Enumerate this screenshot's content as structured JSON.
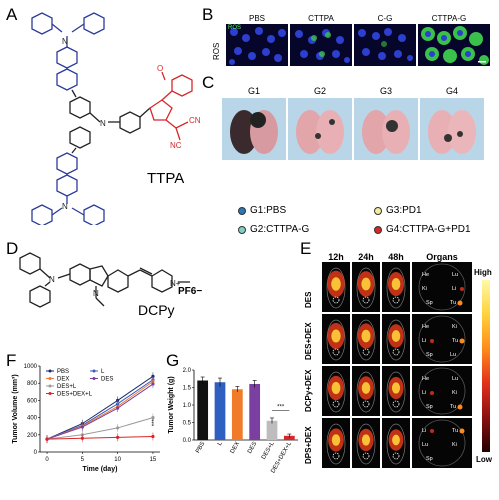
{
  "panels": {
    "A": {
      "label": "A",
      "molecule_name": "TTPA"
    },
    "B": {
      "label": "B",
      "row_label": "ROS",
      "image_tag": "ROS",
      "columns": [
        "PBS",
        "CTTPA",
        "C-G",
        "CTTPA-G"
      ]
    },
    "C": {
      "label": "C",
      "groups": [
        "G1",
        "G2",
        "G3",
        "G4"
      ]
    },
    "legend": [
      {
        "id": "g1",
        "text": "G1:PBS",
        "color": "#2a78b6"
      },
      {
        "id": "g3",
        "text": "G3:PD1",
        "color": "#f3ee9a"
      },
      {
        "id": "g2",
        "text": "G2:CTTPA-G",
        "color": "#7fd0c2"
      },
      {
        "id": "g4",
        "text": "G4:CTTPA-G+PD1",
        "color": "#d8262a"
      }
    ],
    "D": {
      "label": "D",
      "molecule_name": "DCPy",
      "counter_ion": "PF6−",
      "charge": "N+"
    },
    "E": {
      "label": "E",
      "columns": [
        "12h",
        "24h",
        "48h",
        "Organs"
      ],
      "rows": [
        "DES",
        "DES+DEX",
        "DCPy+DEX",
        "DPS+DEX"
      ],
      "organ_labels": [
        [
          "He",
          "Lu",
          "Ki",
          "Li",
          "Sp",
          "Tu"
        ],
        [
          "He",
          "Ki",
          "Li",
          "Tu",
          "Sp",
          "Lu"
        ],
        [
          "He",
          "Lu",
          "Li",
          "Ki",
          "Sp",
          "Tu"
        ],
        [
          "Li",
          "Tu",
          "Lu",
          "Ki",
          "Sp"
        ]
      ],
      "scale_high": "High",
      "scale_low": "Low"
    },
    "F": {
      "label": "F"
    },
    "G": {
      "label": "G"
    }
  },
  "chart_data": [
    {
      "type": "line",
      "title": "",
      "xlabel": "Time (day)",
      "ylabel": "Tumor Volume (mm³)",
      "x": [
        0,
        5,
        10,
        15
      ],
      "xlim": [
        -1,
        16
      ],
      "ylim": [
        0,
        1000
      ],
      "xticks": [
        0,
        5,
        10,
        15
      ],
      "yticks": [
        0,
        200,
        400,
        600,
        800,
        1000
      ],
      "legend_position": "top-left",
      "series": [
        {
          "name": "PBS",
          "color": "#1a2a6c",
          "values": [
            150,
            330,
            600,
            880
          ]
        },
        {
          "name": "L",
          "color": "#3b5bbd",
          "values": [
            150,
            310,
            560,
            840
          ]
        },
        {
          "name": "DEX",
          "color": "#f07b2a",
          "values": [
            150,
            300,
            530,
            820
          ]
        },
        {
          "name": "DES",
          "color": "#7a3fa0",
          "values": [
            150,
            290,
            510,
            790
          ]
        },
        {
          "name": "DES+L",
          "color": "#9a9a9a",
          "values": [
            150,
            200,
            280,
            400
          ]
        },
        {
          "name": "DES+DEX+L",
          "color": "#d8262a",
          "values": [
            150,
            160,
            170,
            180
          ]
        }
      ],
      "annotations": [
        "***"
      ]
    },
    {
      "type": "bar",
      "title": "",
      "xlabel": "",
      "ylabel": "Tumor Weight (g)",
      "categories": [
        "PBS",
        "L",
        "DEX",
        "DES",
        "DES+L",
        "DES+DEX+L"
      ],
      "values": [
        1.7,
        1.65,
        1.45,
        1.6,
        0.55,
        0.12
      ],
      "errors": [
        0.1,
        0.12,
        0.08,
        0.1,
        0.08,
        0.05
      ],
      "colors": [
        "#111111",
        "#2f5fc0",
        "#f07b2a",
        "#7a3fa0",
        "#bdbdbd",
        "#d8262a"
      ],
      "ylim": [
        0,
        2.0
      ],
      "yticks": [
        0.0,
        0.5,
        1.0,
        1.5,
        2.0
      ],
      "annotations": [
        "***"
      ]
    }
  ]
}
